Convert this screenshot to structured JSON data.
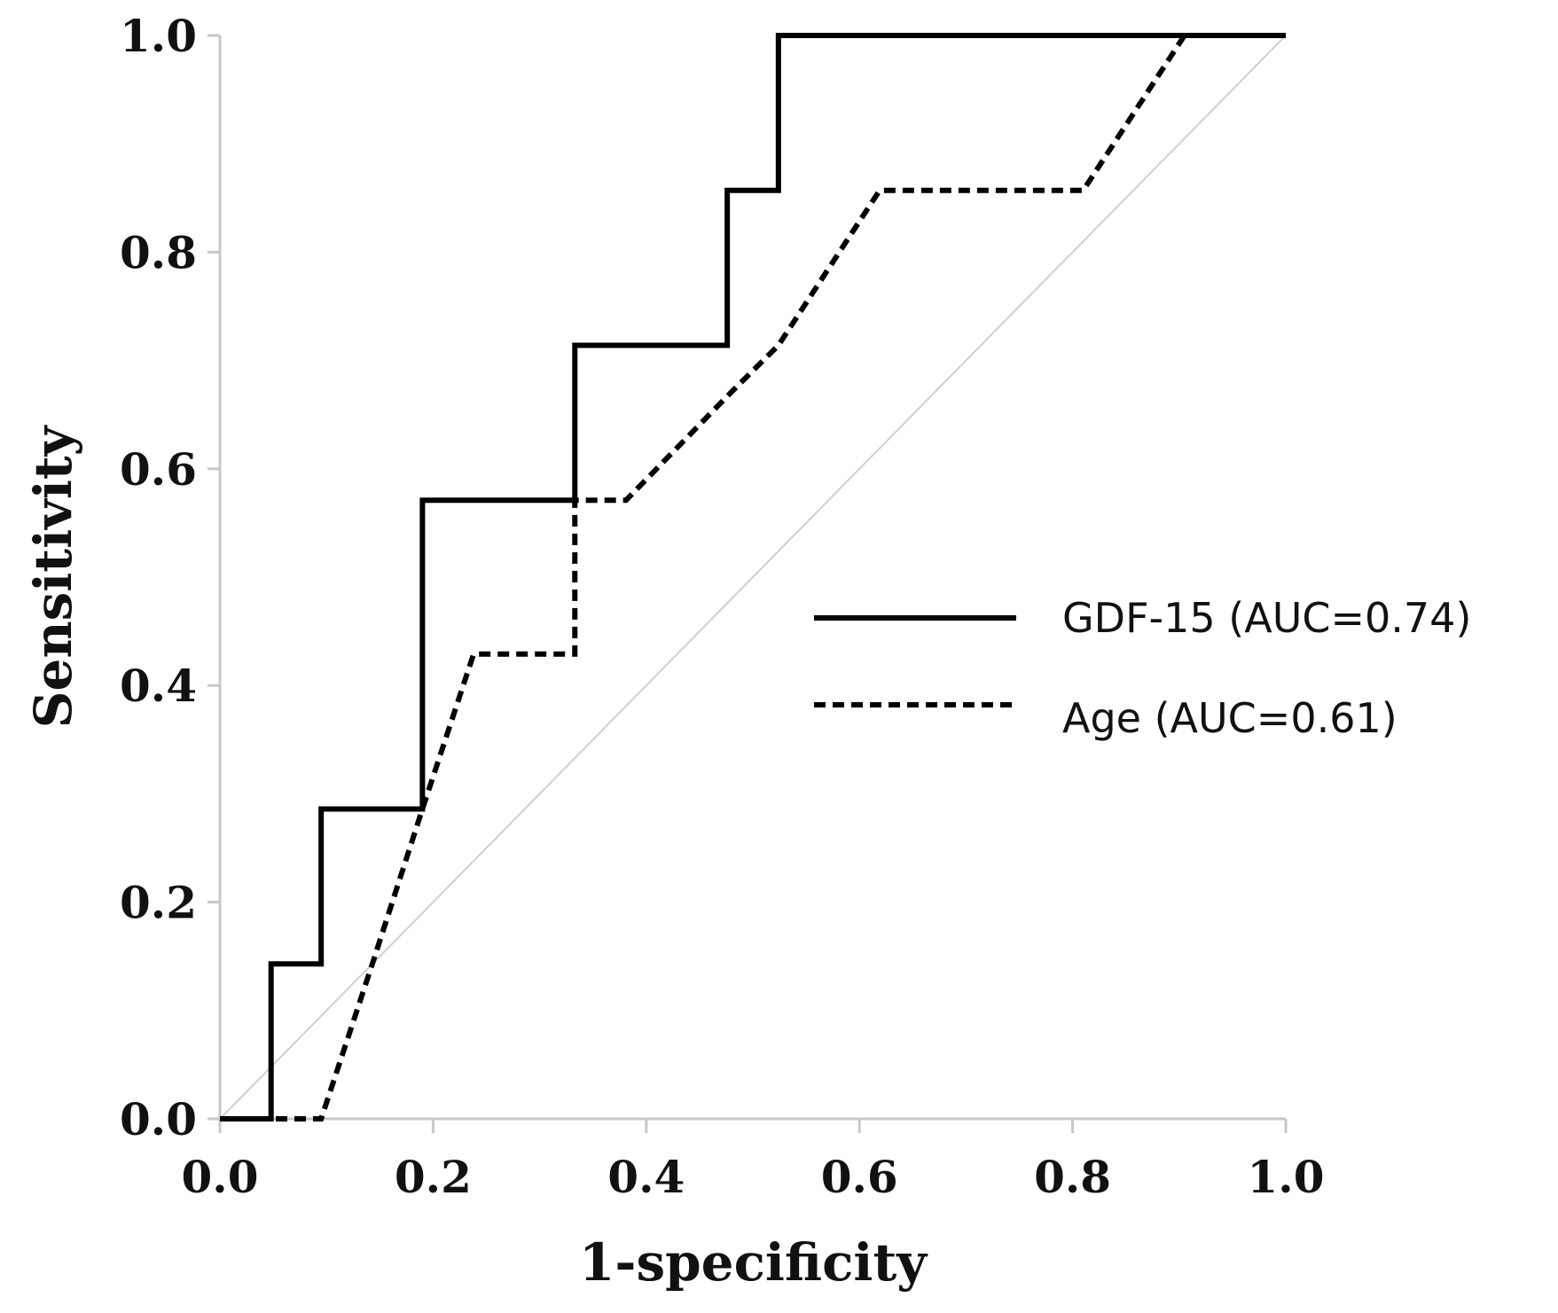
{
  "chart_data": {
    "type": "line",
    "title": "",
    "xlabel": "1-specificity",
    "ylabel": "Sensitivity",
    "xlim": [
      0,
      1
    ],
    "ylim": [
      0,
      1
    ],
    "xticks": [
      "0.0",
      "0.2",
      "0.4",
      "0.6",
      "0.8",
      "1.0"
    ],
    "yticks": [
      "0.0",
      "0.2",
      "0.4",
      "0.6",
      "0.8",
      "1.0"
    ],
    "legend_position": "center-right",
    "reference_line": {
      "name": "chance",
      "x": [
        0,
        1
      ],
      "y": [
        0,
        1
      ],
      "color": "#d0d0d0"
    },
    "series": [
      {
        "name": "GDF-15 (AUC=0.74)",
        "style": "solid",
        "color": "#000000",
        "x": [
          0,
          0.048,
          0.048,
          0.095,
          0.095,
          0.19,
          0.19,
          0.333,
          0.333,
          0.476,
          0.476,
          0.524,
          0.524,
          1.0
        ],
        "y": [
          0,
          0,
          0.143,
          0.143,
          0.286,
          0.286,
          0.571,
          0.571,
          0.714,
          0.714,
          0.857,
          0.857,
          1.0,
          1.0
        ]
      },
      {
        "name": "Age (AUC=0.61)",
        "style": "dashed",
        "color": "#000000",
        "x": [
          0,
          0.095,
          0.143,
          0.19,
          0.238,
          0.333,
          0.333,
          0.381,
          0.476,
          0.524,
          0.619,
          0.81,
          0.905,
          1.0
        ],
        "y": [
          0,
          0,
          0.143,
          0.286,
          0.429,
          0.429,
          0.571,
          0.571,
          0.667,
          0.714,
          0.857,
          0.857,
          1.0,
          1.0
        ]
      }
    ]
  }
}
